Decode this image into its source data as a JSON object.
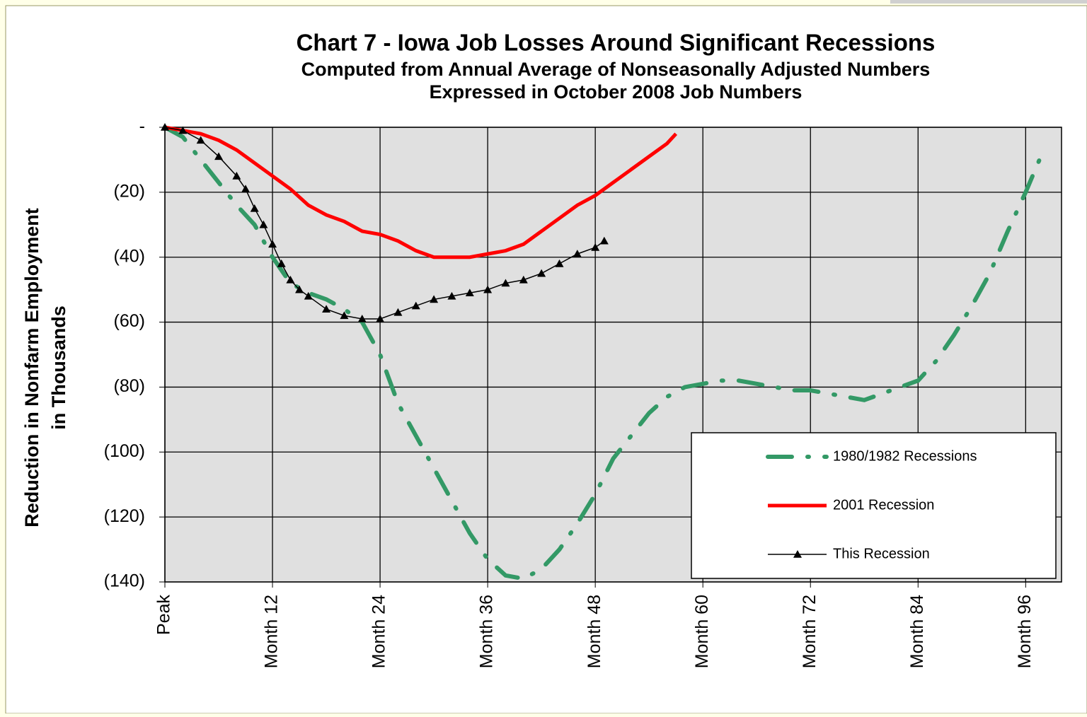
{
  "chart_data": {
    "type": "line",
    "title": "Chart 7 - Iowa Job Losses Around Significant Recessions",
    "subtitle": [
      "Computed from Annual Average of Nonseasonally Adjusted Numbers",
      "Expressed in October 2008 Job Numbers"
    ],
    "ylabel": [
      "Reduction in Nonfarm Employment",
      "in Thousands"
    ],
    "xlim": [
      0,
      100
    ],
    "xticks": [
      {
        "value": 0,
        "label": "Peak"
      },
      {
        "value": 12,
        "label": "Month 12"
      },
      {
        "value": 24,
        "label": "Month 24"
      },
      {
        "value": 36,
        "label": "Month 36"
      },
      {
        "value": 48,
        "label": "Month 48"
      },
      {
        "value": 60,
        "label": "Month 60"
      },
      {
        "value": 72,
        "label": "Month 72"
      },
      {
        "value": 84,
        "label": "Month 84"
      },
      {
        "value": 96,
        "label": "Month 96"
      }
    ],
    "ylim": [
      -140,
      0
    ],
    "yticks": [
      {
        "value": 0,
        "label": "-"
      },
      {
        "value": -20,
        "label": "(20)"
      },
      {
        "value": -40,
        "label": "(40)"
      },
      {
        "value": -60,
        "label": "(60)"
      },
      {
        "value": -80,
        "label": "(80)"
      },
      {
        "value": -100,
        "label": "(100)"
      },
      {
        "value": -120,
        "label": "(120)"
      },
      {
        "value": -140,
        "label": "(140)"
      }
    ],
    "grid": true,
    "legend": "lower right",
    "series": [
      {
        "name": "1980/1982 Recessions",
        "color": "#339966",
        "style": "dashdot",
        "x": [
          0,
          2,
          4,
          6,
          8,
          10,
          12,
          14,
          16,
          18,
          20,
          22,
          24,
          26,
          28,
          30,
          32,
          34,
          36,
          38,
          40,
          42,
          44,
          46,
          48,
          50,
          52,
          54,
          56,
          58,
          60,
          62,
          64,
          66,
          68,
          70,
          72,
          74,
          76,
          78,
          80,
          82,
          84,
          86,
          88,
          90,
          92,
          94,
          96,
          98
        ],
        "values": [
          0,
          -3,
          -10,
          -17,
          -24,
          -30,
          -40,
          -48,
          -51,
          -53,
          -56,
          -60,
          -70,
          -85,
          -95,
          -105,
          -115,
          -125,
          -133,
          -138,
          -139,
          -136,
          -130,
          -122,
          -113,
          -102,
          -95,
          -88,
          -83,
          -80,
          -79,
          -78,
          -78,
          -79,
          -80,
          -81,
          -81,
          -82,
          -83,
          -84,
          -82,
          -80,
          -78,
          -72,
          -64,
          -55,
          -45,
          -32,
          -20,
          -7
        ]
      },
      {
        "name": "2001 Recession",
        "color": "#ff0000",
        "style": "solid",
        "x": [
          0,
          2,
          4,
          6,
          8,
          10,
          12,
          14,
          16,
          18,
          20,
          22,
          24,
          26,
          28,
          30,
          32,
          34,
          36,
          38,
          40,
          42,
          44,
          46,
          48,
          50,
          52,
          54,
          56,
          57
        ],
        "values": [
          0,
          -1,
          -2,
          -4,
          -7,
          -11,
          -15,
          -19,
          -24,
          -27,
          -29,
          -32,
          -33,
          -35,
          -38,
          -40,
          -40,
          -40,
          -39,
          -38,
          -36,
          -32,
          -28,
          -24,
          -21,
          -17,
          -13,
          -9,
          -5,
          -2
        ]
      },
      {
        "name": "This Recession",
        "color": "#000000",
        "style": "triangle",
        "x": [
          0,
          2,
          4,
          6,
          8,
          9,
          10,
          11,
          12,
          13,
          14,
          15,
          16,
          18,
          20,
          22,
          24,
          26,
          28,
          30,
          32,
          34,
          36,
          38,
          40,
          42,
          44,
          46,
          48,
          49
        ],
        "values": [
          0,
          -1,
          -4,
          -9,
          -15,
          -19,
          -25,
          -30,
          -36,
          -42,
          -47,
          -50,
          -52,
          -56,
          -58,
          -59,
          -59,
          -57,
          -55,
          -53,
          -52,
          -51,
          -50,
          -48,
          -47,
          -45,
          -42,
          -39,
          -37,
          -35
        ]
      }
    ]
  }
}
